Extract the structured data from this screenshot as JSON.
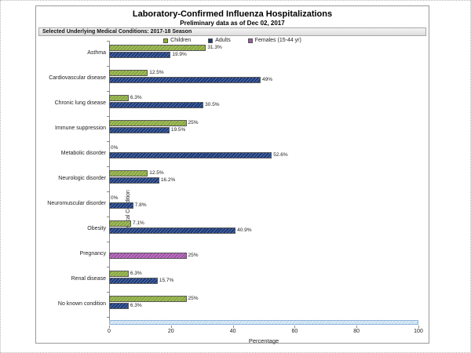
{
  "chart_data": {
    "type": "bar",
    "orientation": "horizontal",
    "title": "Laboratory-Confirmed Influenza Hospitalizations",
    "subtitle": "Preliminary data as of Dec 02, 2017",
    "panel_header": "Selected Underlying Medical Conditions: 2017-18 Season",
    "xlabel": "Percentage",
    "ylabel": "Medical Condition",
    "xlim": [
      0,
      100
    ],
    "xticks": [
      "0",
      "20",
      "40",
      "60",
      "80",
      "100"
    ],
    "grid": false,
    "legend_position": "top",
    "series_colors": {
      "children": "#8cad3e",
      "adults": "#1a3a7e",
      "females": "#a855af"
    },
    "bottom_strip_color": "#c3dcf0",
    "legend": [
      {
        "id": "children",
        "label": "Children"
      },
      {
        "id": "adults",
        "label": "Adults"
      },
      {
        "id": "females",
        "label": "Females (15-44 yr)"
      }
    ],
    "rows": [
      {
        "category": "Asthma",
        "bars": [
          {
            "series": "children",
            "value": 31.3,
            "label": "31.3%"
          },
          {
            "series": "adults",
            "value": 19.9,
            "label": "19.9%"
          }
        ]
      },
      {
        "category": "Cardiovascular disease",
        "bars": [
          {
            "series": "children",
            "value": 12.5,
            "label": "12.5%"
          },
          {
            "series": "adults",
            "value": 49,
            "label": "49%"
          }
        ]
      },
      {
        "category": "Chronic lung disease",
        "bars": [
          {
            "series": "children",
            "value": 6.3,
            "label": "6.3%"
          },
          {
            "series": "adults",
            "value": 30.5,
            "label": "30.5%"
          }
        ]
      },
      {
        "category": "Immune suppression",
        "bars": [
          {
            "series": "children",
            "value": 25,
            "label": "25%"
          },
          {
            "series": "adults",
            "value": 19.5,
            "label": "19.5%"
          }
        ]
      },
      {
        "category": "Metabolic disorder",
        "bars": [
          {
            "series": "children",
            "value": 0,
            "label": "0%"
          },
          {
            "series": "adults",
            "value": 52.6,
            "label": "52.6%"
          }
        ]
      },
      {
        "category": "Neurologic disorder",
        "bars": [
          {
            "series": "children",
            "value": 12.5,
            "label": "12.5%"
          },
          {
            "series": "adults",
            "value": 16.2,
            "label": "16.2%"
          }
        ]
      },
      {
        "category": "Neuromuscular disorder",
        "bars": [
          {
            "series": "children",
            "value": 0,
            "label": "0%"
          },
          {
            "series": "adults",
            "value": 7.8,
            "label": "7.8%"
          }
        ]
      },
      {
        "category": "Obesity",
        "bars": [
          {
            "series": "children",
            "value": 7.1,
            "label": "7.1%"
          },
          {
            "series": "adults",
            "value": 40.9,
            "label": "40.9%"
          }
        ]
      },
      {
        "category": "Pregnancy",
        "bars": [
          {
            "series": "females",
            "value": 25,
            "label": "25%",
            "slot": "adults"
          }
        ]
      },
      {
        "category": "Renal disease",
        "bars": [
          {
            "series": "children",
            "value": 6.3,
            "label": "6.3%"
          },
          {
            "series": "adults",
            "value": 15.7,
            "label": "15.7%"
          }
        ]
      },
      {
        "category": "No known condition",
        "bars": [
          {
            "series": "children",
            "value": 25,
            "label": "25%"
          },
          {
            "series": "adults",
            "value": 6.3,
            "label": "6.3%"
          }
        ]
      }
    ]
  }
}
